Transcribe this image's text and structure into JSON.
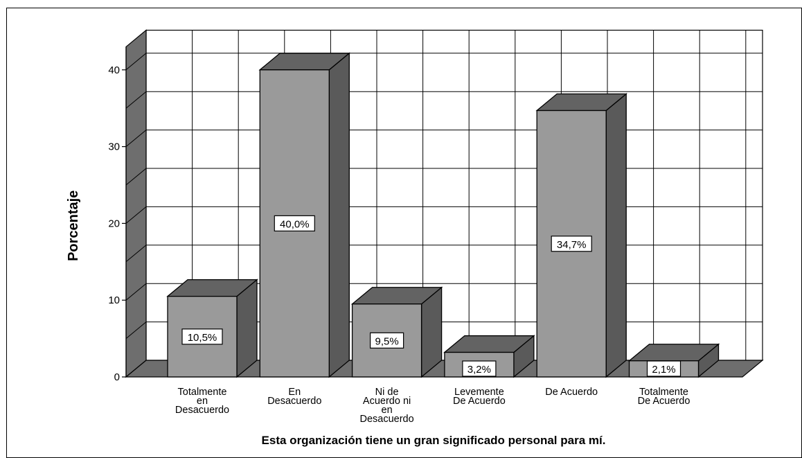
{
  "chart_data": {
    "type": "bar",
    "style": "3d",
    "title": "",
    "xlabel": "Esta organización tiene un gran significado personal para mí.",
    "ylabel": "Porcentaje",
    "categories": [
      [
        "Totalmente",
        "en",
        "Desacuerdo"
      ],
      [
        "En",
        "Desacuerdo"
      ],
      [
        "Ni de",
        "Acuerdo ni",
        "en",
        "Desacuerdo"
      ],
      [
        "Levemente",
        "De Acuerdo"
      ],
      [
        "De Acuerdo"
      ],
      [
        "Totalmente",
        "De Acuerdo"
      ]
    ],
    "values": [
      10.5,
      40.0,
      9.5,
      3.2,
      34.7,
      2.1
    ],
    "value_labels": [
      "10,5%",
      "40,0%",
      "9,5%",
      "3,2%",
      "34,7%",
      "2,1%"
    ],
    "yticks": [
      "0",
      "10",
      "20",
      "30",
      "40"
    ],
    "ylim": [
      0,
      40
    ],
    "grid": true,
    "colors": {
      "bar_front": "#9a9a9a",
      "bar_top": "#636363",
      "bar_side": "#5a5a5a",
      "wall": "#6e6e6e",
      "floor": "#6e6e6e"
    }
  }
}
